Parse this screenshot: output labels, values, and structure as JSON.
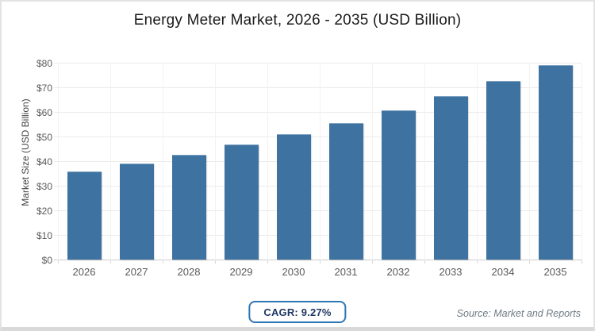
{
  "chart_data": {
    "type": "bar",
    "title": "Energy Meter Market, 2026 - 2035 (USD Billion)",
    "categories": [
      "2026",
      "2027",
      "2028",
      "2029",
      "2030",
      "2031",
      "2032",
      "2033",
      "2034",
      "2035"
    ],
    "values": [
      35.5,
      38.8,
      42.4,
      46.3,
      50.6,
      55.3,
      60.4,
      66.0,
      72.2,
      78.8
    ],
    "xlabel": "",
    "ylabel": "Market Size (USD Billion)",
    "ylim": [
      0,
      80
    ],
    "y_tick_step": 10,
    "y_tick_prefix": "$",
    "grid": "horizontal and faint vertical category separators",
    "legend": "none",
    "bar_color": "#3e73a1"
  },
  "footer": {
    "cagr_label": "CAGR: 9.27%",
    "source": "Source: Market and Reports"
  },
  "colors": {
    "bar": "#3e73a1",
    "badge_border": "#2e75b5",
    "badge_text": "#1f3864",
    "title_text": "#1a1a1a",
    "tick_text": "#595959",
    "source_text": "#6d7a84",
    "gridline": "#ebebeb",
    "page_border": "#e3e3e3"
  }
}
